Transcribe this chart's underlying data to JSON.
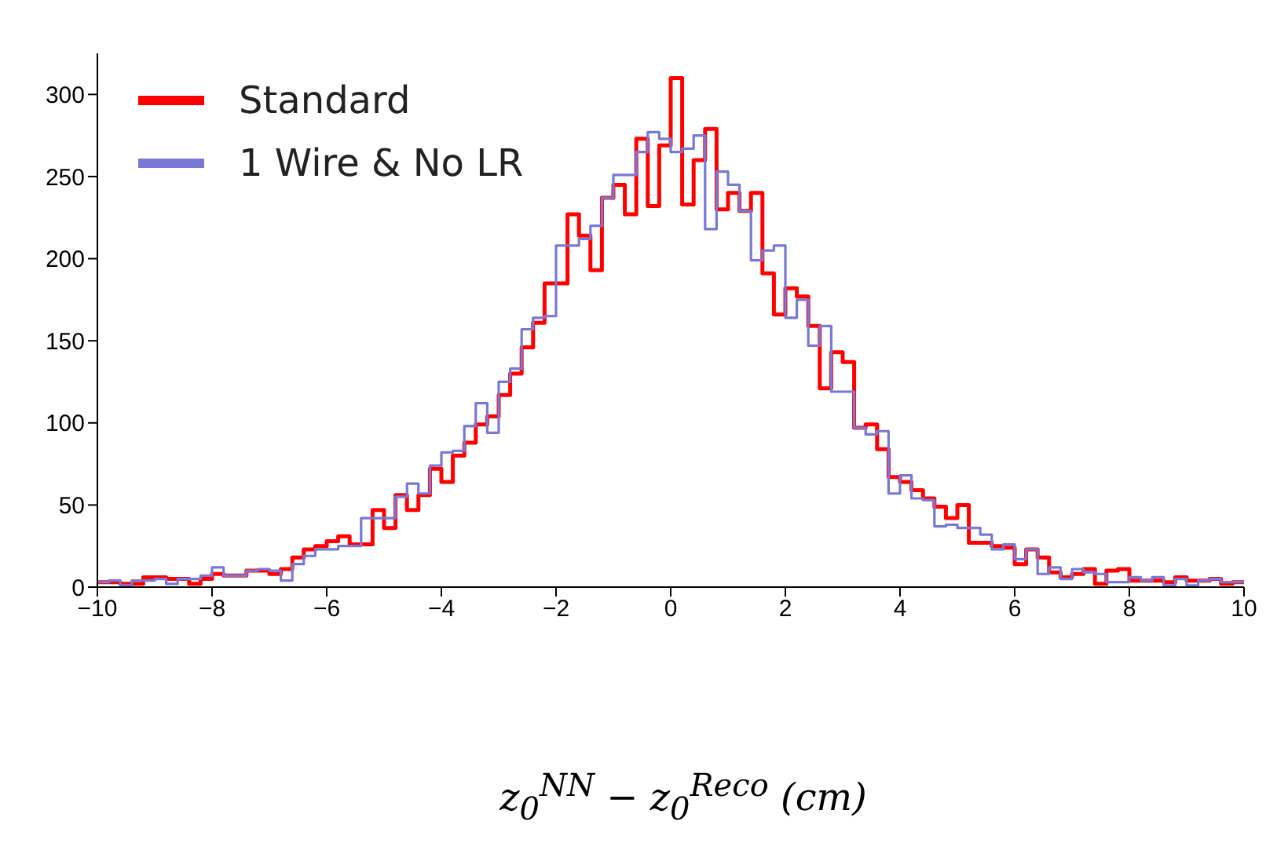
{
  "chart_data": {
    "type": "histogram",
    "xlabel": "z$_{0}$$^{NN}$ − z$_{0}$$^{Reco}$ (cm)",
    "bins": [
      -10,
      -9.8,
      -9.6,
      -9.4,
      -9.2,
      -9,
      -8.8,
      -8.6,
      -8.4,
      -8.2,
      -8,
      -7.8,
      -7.6,
      -7.4,
      -7.2,
      -7,
      -6.8,
      -6.6,
      -6.4,
      -6.2,
      -6,
      -5.8,
      -5.6,
      -5.4,
      -5.2,
      -5,
      -4.8,
      -4.6,
      -4.4,
      -4.2,
      -4,
      -3.8,
      -3.6,
      -3.4,
      -3.2,
      -3,
      -2.8,
      -2.6,
      -2.4,
      -2.2,
      -2,
      -1.8,
      -1.6,
      -1.4,
      -1.2,
      -1,
      -0.8,
      -0.6,
      -0.4,
      -0.2,
      0,
      0.2,
      0.4,
      0.6,
      0.8,
      1,
      1.2,
      1.4,
      1.6,
      1.8,
      2,
      2.2,
      2.4,
      2.6,
      2.8,
      3,
      3.2,
      3.4,
      3.6,
      3.8,
      4,
      4.2,
      4.4,
      4.6,
      4.8,
      5,
      5.2,
      5.4,
      5.6,
      5.8,
      6,
      6.2,
      6.4,
      6.6,
      6.8,
      7,
      7.2,
      7.4,
      7.6,
      7.8,
      8,
      8.2,
      8.4,
      8.6,
      8.8,
      9,
      9.2,
      9.4,
      9.6,
      9.8,
      10
    ],
    "series": [
      {
        "name": "Standard",
        "color": "#ff0000",
        "values": [
          3,
          3,
          2,
          2,
          6,
          6,
          5,
          5,
          2,
          5,
          8,
          7,
          7,
          10,
          10,
          8,
          11,
          18,
          23,
          25,
          28,
          31,
          26,
          26,
          47,
          36,
          56,
          47,
          56,
          72,
          64,
          80,
          88,
          99,
          104,
          117,
          130,
          146,
          161,
          185,
          185,
          227,
          214,
          193,
          237,
          245,
          227,
          273,
          232,
          269,
          310,
          233,
          260,
          279,
          230,
          240,
          229,
          240,
          191,
          166,
          182,
          177,
          159,
          121,
          143,
          137,
          97,
          99,
          84,
          67,
          64,
          59,
          54,
          49,
          42,
          50,
          27,
          27,
          25,
          24,
          14,
          23,
          18,
          9,
          6,
          8,
          11,
          2,
          10,
          11,
          4,
          4,
          4,
          3,
          6,
          4,
          4,
          5,
          2,
          3
        ]
      },
      {
        "name": "1 Wire & No LR",
        "color": "#7878d8",
        "values": [
          3,
          4,
          1,
          4,
          4,
          5,
          2,
          5,
          5,
          7,
          12,
          7,
          7,
          10,
          11,
          10,
          4,
          14,
          19,
          23,
          23,
          25,
          25,
          42,
          42,
          42,
          55,
          63,
          57,
          74,
          82,
          83,
          98,
          112,
          94,
          125,
          133,
          157,
          164,
          165,
          208,
          208,
          212,
          220,
          237,
          251,
          251,
          265,
          277,
          273,
          265,
          267,
          275,
          218,
          253,
          245,
          229,
          199,
          205,
          208,
          164,
          175,
          147,
          159,
          119,
          119,
          97,
          93,
          95,
          57,
          68,
          54,
          53,
          37,
          38,
          36,
          36,
          32,
          23,
          26,
          17,
          23,
          8,
          12,
          5,
          11,
          9,
          8,
          3,
          3,
          6,
          4,
          6,
          1,
          5,
          1,
          4,
          5,
          3,
          3
        ]
      }
    ],
    "xlim": [
      -10,
      10
    ],
    "xticks": [
      -10,
      -8,
      -6,
      -4,
      -2,
      0,
      2,
      4,
      6,
      8,
      10
    ],
    "ylim": [
      0,
      325
    ],
    "yticks": [
      0,
      50,
      100,
      150,
      200,
      250,
      300
    ],
    "grid": false,
    "legend": "top left"
  }
}
